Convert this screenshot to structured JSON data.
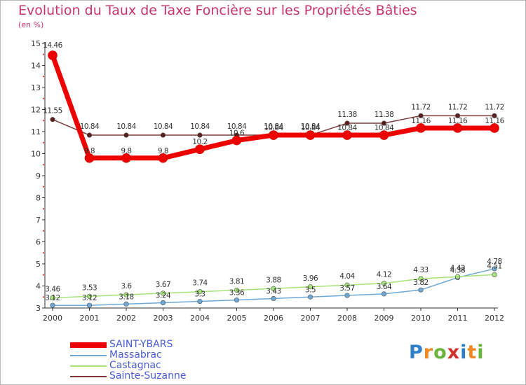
{
  "chart_data": {
    "type": "line",
    "title": "Evolution du Taux de Taxe Foncière sur les Propriétés Bâties",
    "subtitle": "(en %)",
    "xlabel": "",
    "ylabel": "",
    "ylim": [
      3,
      15
    ],
    "categories": [
      "2000",
      "2001",
      "2002",
      "2003",
      "2004",
      "2005",
      "2006",
      "2007",
      "2008",
      "2009",
      "2010",
      "2011",
      "2012"
    ],
    "y_ticks": [
      "3",
      "4",
      "5",
      "6",
      "7",
      "8",
      "9",
      "10",
      "11",
      "12",
      "13",
      "14",
      "15"
    ],
    "legend_position": "bottom-left",
    "series": [
      {
        "name": "SAINT-YBARS",
        "color": "#ee0000",
        "values": [
          14.46,
          9.8,
          9.8,
          9.8,
          10.2,
          10.6,
          10.84,
          10.84,
          10.84,
          10.84,
          11.16,
          11.16,
          11.16
        ],
        "labels": [
          "14.46",
          "9.8",
          "9.8",
          "9.8",
          "10.2",
          "10.6",
          "10.84",
          "10.84",
          "10.84",
          "10.84",
          "11.16",
          "11.16",
          "11.16"
        ]
      },
      {
        "name": "Massabrac",
        "color": "#6fa8d4",
        "values": [
          3.12,
          3.12,
          3.18,
          3.24,
          3.3,
          3.36,
          3.43,
          3.5,
          3.57,
          3.64,
          3.82,
          4.38,
          4.78
        ],
        "labels": [
          "3.12",
          "3.12",
          "3.18",
          "3.24",
          "3.3",
          "3.36",
          "3.43",
          "3.5",
          "3.57",
          "3.64",
          "3.82",
          "4.38",
          "4.78"
        ]
      },
      {
        "name": "Castagnac",
        "color": "#a6e37a",
        "values": [
          3.46,
          3.53,
          3.6,
          3.67,
          3.74,
          3.81,
          3.88,
          3.96,
          4.04,
          4.12,
          4.33,
          4.42,
          4.51
        ],
        "labels": [
          "3.46",
          "3.53",
          "3.6",
          "3.67",
          "3.74",
          "3.81",
          "3.88",
          "3.96",
          "4.04",
          "4.12",
          "4.33",
          "4.42",
          "4.51"
        ]
      },
      {
        "name": "Sainte-Suzanne",
        "color": "#7d3b3b",
        "values": [
          11.55,
          10.84,
          10.84,
          10.84,
          10.84,
          10.84,
          10.84,
          10.84,
          11.38,
          11.38,
          11.72,
          11.72,
          11.72
        ],
        "labels": [
          "11.55",
          "10.84",
          "10.84",
          "10.84",
          "10.84",
          "10.84",
          "10.84",
          "10.84",
          "11.38",
          "11.38",
          "11.72",
          "11.72",
          "11.72"
        ]
      }
    ]
  },
  "logo": {
    "letters": [
      "P",
      "r",
      "o",
      "x",
      "i",
      "t",
      "i"
    ],
    "colors": [
      "#2e7fc8",
      "#f08a24",
      "#69b43a",
      "#d0312d",
      "#2e7fc8",
      "#f08a24",
      "#69b43a"
    ]
  }
}
